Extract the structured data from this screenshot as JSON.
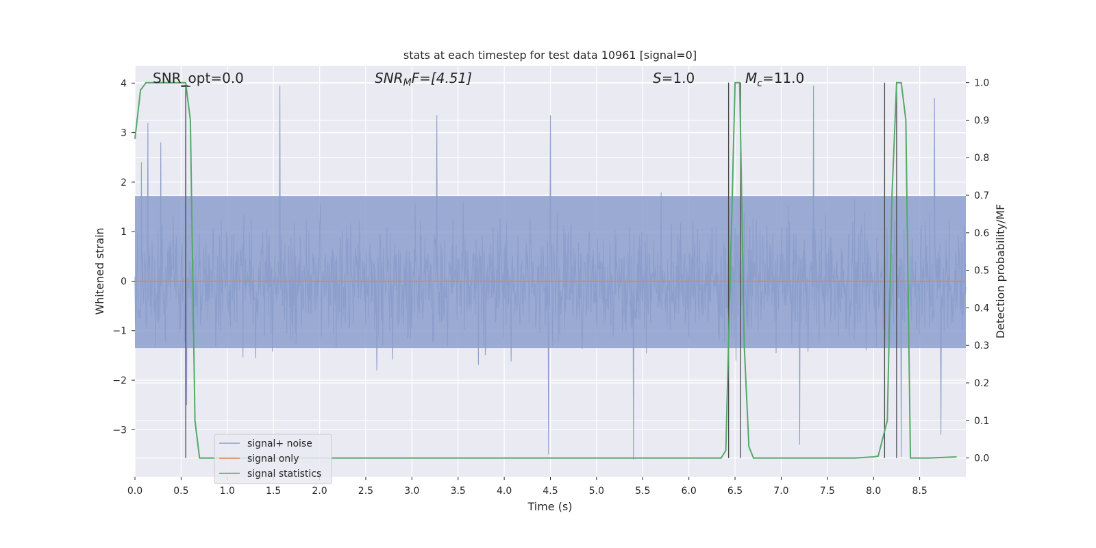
{
  "chart_data": {
    "type": "line",
    "title": "stats at each timestep for test data 10961 [signal=0]",
    "xlabel": "Time (s)",
    "ylabel": "Whitened strain",
    "y2label": "Detection probability/MF",
    "xlim": [
      0.0,
      9.0
    ],
    "ylim": [
      -3.95,
      4.35
    ],
    "y2lim": [
      -0.05,
      1.045
    ],
    "x_ticks": [
      "0.0",
      "0.5",
      "1.0",
      "1.5",
      "2.0",
      "2.5",
      "3.0",
      "3.5",
      "4.0",
      "4.5",
      "5.0",
      "5.5",
      "6.0",
      "6.5",
      "7.0",
      "7.5",
      "8.0",
      "8.5"
    ],
    "y_ticks": [
      "4",
      "3",
      "2",
      "1",
      "0",
      "−1",
      "−2",
      "−3"
    ],
    "y2_ticks": [
      "1.0",
      "0.9",
      "0.8",
      "0.7",
      "0.6",
      "0.5",
      "0.4",
      "0.3",
      "0.2",
      "0.1",
      "0.0"
    ],
    "grid": true,
    "legend_position": "lower-left",
    "annotations": {
      "snr_opt": "SNR_opt=0.0",
      "snr_mf_prefix": "SNR",
      "snr_mf_sub": "M",
      "snr_mf_suffix": "F=[4.51]",
      "s_var": "S",
      "s_value": "=1.0",
      "mc_var": "M",
      "mc_sub": "c",
      "mc_value": "=11.0"
    },
    "series": [
      {
        "name": "signal+ noise",
        "color": "#8c9fcc",
        "noise_band": [
          -1.35,
          1.72
        ],
        "max_abs": 4.0,
        "peaks": [
          [
            0.07,
            2.4
          ],
          [
            0.14,
            3.2
          ],
          [
            0.28,
            2.8
          ],
          [
            0.55,
            4.0
          ],
          [
            0.56,
            -2.5
          ],
          [
            1.57,
            3.95
          ],
          [
            1.6,
            -0.5
          ],
          [
            3.27,
            3.35
          ],
          [
            4.5,
            3.35
          ],
          [
            4.48,
            -3.5
          ],
          [
            5.4,
            -3.6
          ],
          [
            7.35,
            3.95
          ],
          [
            7.2,
            -3.3
          ],
          [
            8.3,
            -3.55
          ],
          [
            8.66,
            3.7
          ],
          [
            8.73,
            -3.1
          ]
        ]
      },
      {
        "name": "signal only",
        "color": "#dd8452",
        "values": 0
      },
      {
        "name": "signal statistics",
        "color": "#55a868",
        "x": [
          0.0,
          0.06,
          0.12,
          0.55,
          0.6,
          0.65,
          0.7,
          6.35,
          6.4,
          6.45,
          6.5,
          6.55,
          6.6,
          6.65,
          6.7,
          7.8,
          8.0,
          8.05,
          8.15,
          8.2,
          8.25,
          8.3,
          8.35,
          8.4,
          8.6,
          8.9
        ],
        "y": [
          0.85,
          0.98,
          1.0,
          1.0,
          0.9,
          0.1,
          0.0,
          0.0,
          0.02,
          0.5,
          1.0,
          1.0,
          0.3,
          0.03,
          0.0,
          0.0,
          0.003,
          0.005,
          0.1,
          0.7,
          1.0,
          1.0,
          0.9,
          0.0,
          0.0,
          0.003
        ]
      }
    ],
    "markers_x": [
      0.55,
      6.43,
      6.56,
      8.12,
      8.25
    ]
  }
}
